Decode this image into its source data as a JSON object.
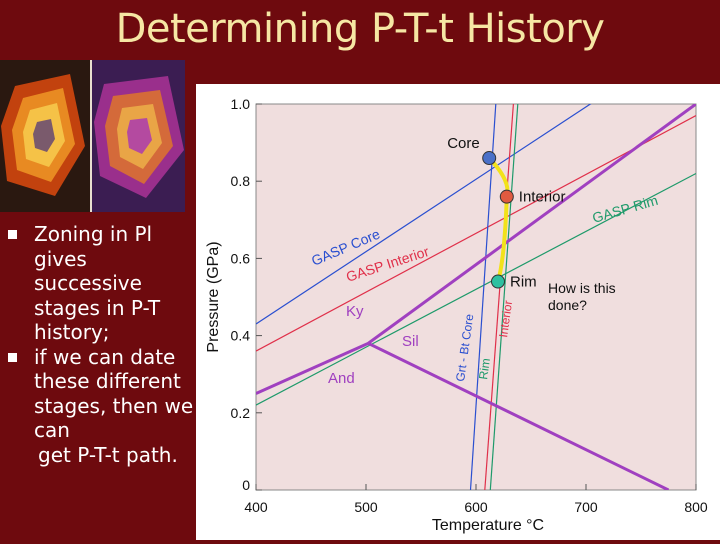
{
  "slide": {
    "title": "Determining P-T-t History",
    "bullets": [
      "Zoning in Pl gives successive stages in P-T history;",
      "if we can date these different stages, then we can"
    ],
    "bullet_tail": "get P-T-t path."
  },
  "chart_data": {
    "type": "line",
    "xlabel": "Temperature °C",
    "ylabel": "Pressure (GPa)",
    "xlim": [
      400,
      800
    ],
    "ylim": [
      0,
      1.0
    ],
    "x_ticks": [
      400,
      500,
      600,
      700,
      800
    ],
    "y_ticks": [
      "0",
      "0.2",
      "0.4",
      "0.6",
      "0.8",
      "1.0"
    ],
    "grid": false,
    "series": [
      {
        "name": "GASP Core",
        "color": "#2a4fd0",
        "points": [
          [
            400,
            0.43
          ],
          [
            800,
            1.18
          ]
        ]
      },
      {
        "name": "GASP Interior",
        "color": "#e0304a",
        "points": [
          [
            400,
            0.36
          ],
          [
            800,
            0.97
          ]
        ]
      },
      {
        "name": "GASP Rim",
        "color": "#1e9a6a",
        "points": [
          [
            400,
            0.22
          ],
          [
            800,
            0.82
          ]
        ]
      },
      {
        "name": "Grt - Bt Core",
        "color": "#2a4fd0",
        "points": [
          [
            595,
            0.0
          ],
          [
            618,
            1.0
          ]
        ]
      },
      {
        "name": "Grt - Bt Interior",
        "color": "#e0304a",
        "points": [
          [
            608,
            0.0
          ],
          [
            634,
            1.0
          ]
        ]
      },
      {
        "name": "Grt - Bt Rim",
        "color": "#1e9a6a",
        "points": [
          [
            613,
            0.0
          ],
          [
            638,
            1.0
          ]
        ]
      },
      {
        "name": "",
        "color": "#a040c0",
        "points": [
          [
            400,
            0.25
          ],
          [
            502,
            0.38
          ]
        ]
      },
      {
        "name": "",
        "color": "#a040c0",
        "points": [
          [
            502,
            0.38
          ],
          [
            800,
            1.0
          ]
        ]
      },
      {
        "name": "",
        "color": "#a040c0",
        "points": [
          [
            502,
            0.38
          ],
          [
            775,
            0.0
          ]
        ]
      }
    ],
    "zoning_points": [
      {
        "name": "Core",
        "x": 612,
        "y": 0.86,
        "color": "#4a70c8"
      },
      {
        "name": "Interior",
        "x": 628,
        "y": 0.76,
        "color": "#e05a40"
      },
      {
        "name": "Rim",
        "x": 620,
        "y": 0.54,
        "color": "#2ec0a0"
      }
    ],
    "path_color": "#f2e21a",
    "field_labels": [
      "Ky",
      "Sil",
      "And"
    ],
    "line_labels": {
      "gasp_core": "GASP Core",
      "gasp_interior": "GASP Interior",
      "gasp_rim": "GASP Rim",
      "grtbt_core": "Grt - Bt Core",
      "grtbt_interior": "Interior",
      "grtbt_rim": "Rim"
    },
    "annotation": "How is this done?"
  }
}
